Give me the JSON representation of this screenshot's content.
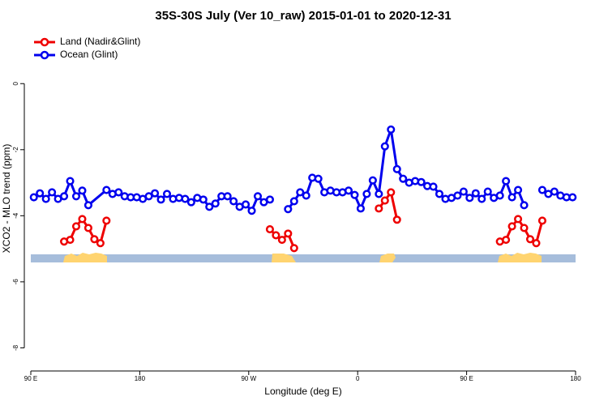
{
  "chart_data": {
    "type": "line",
    "title": "35S-30S July (Ver 10_raw)   2015-01-01 to 2020-12-31",
    "xlabel": "Longitude (deg E)",
    "ylabel": "XCO2 - MLO trend (ppm)",
    "xlim": [
      -270,
      180
    ],
    "ylim": [
      -8.7,
      1.6
    ],
    "xticks": [
      {
        "value": -270,
        "label": "90 E"
      },
      {
        "value": -180,
        "label": "180"
      },
      {
        "value": -90,
        "label": "90 W"
      },
      0,
      {
        "value": 90,
        "label": "90 E"
      },
      180
    ],
    "yticks": [
      -8,
      -6,
      -4,
      -2,
      0
    ],
    "legend": "top-left",
    "series": [
      {
        "name": "Land (Nadir&Glint)",
        "color": "#ee0000",
        "x": [
          -242.5,
          -237.5,
          -232.5,
          -227.5,
          -222.5,
          -217.5,
          -212.5,
          -207.5,
          -202.5,
          -72.5,
          -67.5,
          -62.5,
          -57.5,
          -52.5,
          -47.5,
          17.5,
          22.5,
          27.5,
          32.5,
          37.5,
          117.5,
          122.5,
          127.5,
          132.5,
          137.5,
          142.5,
          147.5,
          152.5
        ],
        "values": [
          -4.78,
          -4.73,
          -4.32,
          -4.1,
          -4.37,
          -4.71,
          -4.83,
          -4.15,
          null,
          -4.41,
          -4.59,
          -4.73,
          -4.54,
          -4.98,
          null,
          -3.78,
          -3.54,
          -3.29,
          -4.12,
          null,
          -4.78,
          -4.73,
          -4.32,
          -4.1,
          -4.37,
          -4.71,
          -4.83,
          -4.15
        ]
      },
      {
        "name": "Ocean (Glint)",
        "color": "#0000ee",
        "x": [
          -267.5,
          -262.5,
          -257.5,
          -252.5,
          -247.5,
          -242.5,
          -237.5,
          -232.5,
          -227.5,
          -222.5,
          -207.5,
          -202.5,
          -197.5,
          -192.5,
          -187.5,
          -182.5,
          -177.5,
          -172.5,
          -167.5,
          -162.5,
          -157.5,
          -152.5,
          -147.5,
          -142.5,
          -137.5,
          -132.5,
          -127.5,
          -122.5,
          -117.5,
          -112.5,
          -107.5,
          -102.5,
          -97.5,
          -92.5,
          -87.5,
          -82.5,
          -77.5,
          -72.5,
          -67.5,
          -57.5,
          -52.5,
          -47.5,
          -42.5,
          -37.5,
          -32.5,
          -27.5,
          -22.5,
          -17.5,
          -12.5,
          -7.5,
          -2.5,
          2.5,
          7.5,
          12.5,
          17.5,
          22.5,
          27.5,
          32.5,
          37.5,
          42.5,
          47.5,
          52.5,
          57.5,
          62.5,
          67.5,
          72.5,
          77.5,
          82.5,
          87.5,
          92.5,
          97.5,
          102.5,
          107.5,
          112.5,
          117.5,
          122.5,
          127.5,
          132.5,
          137.5,
          142.5,
          152.5,
          157.5,
          162.5,
          167.5,
          172.5,
          177.5
        ],
        "values": [
          -3.44,
          -3.32,
          -3.49,
          -3.29,
          -3.49,
          -3.41,
          -2.95,
          -3.41,
          -3.24,
          -3.68,
          -3.22,
          -3.34,
          -3.29,
          -3.41,
          -3.44,
          -3.44,
          -3.49,
          -3.41,
          -3.32,
          -3.51,
          -3.34,
          -3.49,
          -3.46,
          -3.49,
          -3.59,
          -3.46,
          -3.51,
          -3.73,
          -3.63,
          -3.41,
          -3.41,
          -3.56,
          -3.73,
          -3.66,
          -3.85,
          -3.41,
          -3.59,
          -3.51,
          null,
          -3.8,
          -3.56,
          -3.29,
          -3.39,
          -2.85,
          -2.88,
          -3.29,
          -3.24,
          -3.29,
          -3.29,
          -3.24,
          -3.37,
          -3.78,
          -3.34,
          -2.93,
          -3.34,
          -1.9,
          -1.39,
          -2.59,
          -2.88,
          -3.0,
          -2.95,
          -2.98,
          -3.1,
          -3.12,
          -3.34,
          -3.49,
          -3.46,
          -3.39,
          -3.27,
          -3.46,
          -3.32,
          -3.49,
          -3.27,
          -3.46,
          -3.39,
          -2.95,
          -3.44,
          -3.22,
          -3.68,
          null,
          -3.22,
          -3.34,
          -3.27,
          -3.39,
          -3.44,
          -3.44
        ]
      }
    ]
  }
}
